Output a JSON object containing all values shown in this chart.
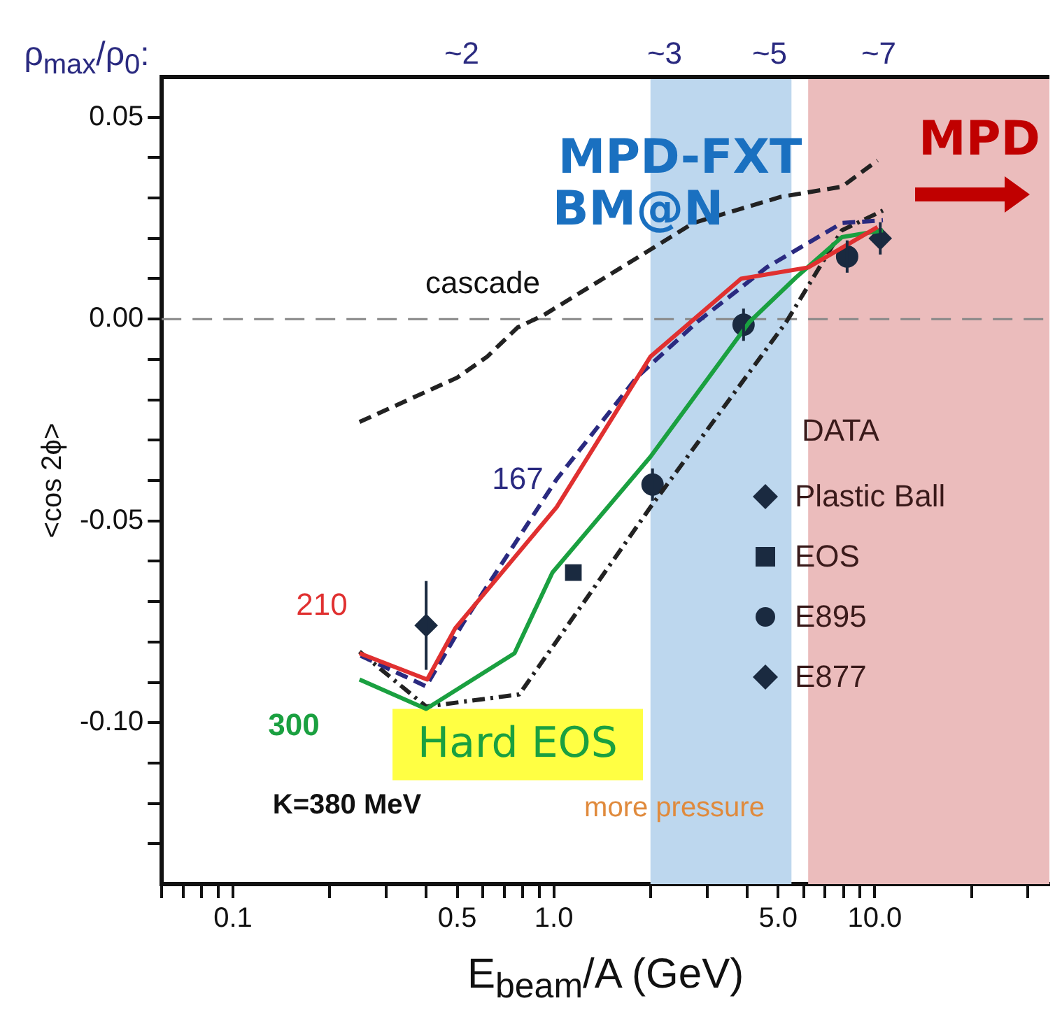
{
  "chart_data": {
    "type": "line",
    "xlabel": "E$_{beam}$/A (GeV)",
    "ylabel": "<cos 2ϕ>",
    "log": "x",
    "xlim": [
      0.06,
      35
    ],
    "ylim": [
      -0.14,
      0.06
    ],
    "xticks": [
      {
        "value": 0.06,
        "label": null
      },
      {
        "value": 0.07,
        "label": null
      },
      {
        "value": 0.08,
        "label": null
      },
      {
        "value": 0.09,
        "label": null
      },
      0.1,
      {
        "value": 0.2,
        "label": null
      },
      {
        "value": 0.3,
        "label": null
      },
      {
        "value": 0.4,
        "label": null
      },
      0.5,
      {
        "value": 0.6,
        "label": null
      },
      {
        "value": 0.7,
        "label": null
      },
      {
        "value": 0.8,
        "label": null
      },
      {
        "value": 0.9,
        "label": null
      },
      {
        "value": 1,
        "label": "1.0"
      },
      {
        "value": 2,
        "label": null
      },
      {
        "value": 3,
        "label": null
      },
      {
        "value": 4,
        "label": null
      },
      {
        "value": 5,
        "label": "5.0"
      },
      {
        "value": 6,
        "label": null
      },
      {
        "value": 7,
        "label": null
      },
      {
        "value": 8,
        "label": null
      },
      {
        "value": 9,
        "label": null
      },
      {
        "value": 10,
        "label": "10.0"
      },
      {
        "value": 20,
        "label": null
      },
      {
        "value": 30,
        "label": null
      }
    ],
    "yticks": [
      {
        "value": -0.13,
        "label": null
      },
      {
        "value": -0.12,
        "label": null
      },
      {
        "value": -0.11,
        "label": null
      },
      {
        "value": -0.1,
        "label": "-0.10"
      },
      {
        "value": -0.09,
        "label": null
      },
      {
        "value": -0.08,
        "label": null
      },
      {
        "value": -0.07,
        "label": null
      },
      {
        "value": -0.06,
        "label": null
      },
      -0.05,
      {
        "value": -0.04,
        "label": null
      },
      {
        "value": -0.03,
        "label": null
      },
      {
        "value": -0.02,
        "label": null
      },
      {
        "value": -0.01,
        "label": null
      },
      {
        "value": 0,
        "label": "0.00"
      },
      {
        "value": 0.01,
        "label": null
      },
      {
        "value": 0.02,
        "label": null
      },
      {
        "value": 0.03,
        "label": null
      },
      {
        "value": 0.04,
        "label": null
      },
      0.05
    ],
    "grid": false,
    "legend": "right",
    "legend_title": "DATA",
    "bands": [
      {
        "axis": "x",
        "from": 2.0,
        "to": 5.5,
        "color": "#bdd7ee"
      },
      {
        "axis": "x",
        "from": 6.2,
        "to": 35,
        "color": "#ebbcbc"
      }
    ],
    "ref_lines": [
      {
        "axis": "y",
        "value": 0,
        "color": "#888888",
        "line_style": "dashed"
      }
    ],
    "series": [
      {
        "color": "#222222",
        "line_style": "dashed",
        "x": [
          0.248,
          0.4,
          0.5,
          0.62,
          0.77,
          0.93,
          1.76,
          2.72,
          5.1,
          7.9,
          10.2
        ],
        "values": [
          -0.0255,
          -0.018,
          -0.0145,
          -0.0093,
          -0.0021,
          0.001,
          0.0145,
          0.0238,
          0.0303,
          0.0328,
          0.0393
        ]
      },
      {
        "color": "#e03030",
        "line_style": "solid",
        "x": [
          0.248,
          0.403,
          0.493,
          1.02,
          2.0,
          3.83,
          6.2,
          10.2
        ],
        "values": [
          -0.0828,
          -0.0893,
          -0.0766,
          -0.0466,
          -0.0093,
          0.01,
          0.0128,
          0.0228
        ]
      },
      {
        "color": "#2a2a80",
        "line_style": "dashed",
        "x": [
          0.25,
          0.4,
          0.52,
          1.02,
          1.81,
          2.8,
          4.6,
          7.9,
          10.6
        ],
        "values": [
          -0.0834,
          -0.091,
          -0.0755,
          -0.0397,
          -0.0145,
          -0.0007,
          0.0128,
          0.0238,
          0.0245
        ]
      },
      {
        "color": "#1aa040",
        "line_style": "solid",
        "x": [
          0.248,
          0.4,
          0.754,
          0.99,
          2.0,
          4.07,
          5.68,
          7.9,
          10.6
        ],
        "values": [
          -0.0893,
          -0.0966,
          -0.0828,
          -0.0628,
          -0.0341,
          -0.0007,
          0.0103,
          0.0203,
          0.022
        ]
      },
      {
        "color": "#222222",
        "line_style": "dotted",
        "x": [
          0.248,
          0.4,
          0.78,
          2.0,
          5.3,
          7.9,
          10.6
        ],
        "values": [
          -0.0824,
          -0.096,
          -0.093,
          -0.0466,
          -0.0007,
          0.022,
          0.0269
        ]
      },
      {
        "type": "scatter",
        "name": "Plastic Ball",
        "color": "#1a2a40",
        "marker": "diamond",
        "x": [
          0.4
        ],
        "values": [
          -0.0759
        ],
        "errors": [
          0.011
        ]
      },
      {
        "type": "scatter",
        "name": "EOS",
        "color": "#1a2a40",
        "marker": "square",
        "x": [
          1.15
        ],
        "values": [
          -0.0628
        ]
      },
      {
        "type": "scatter",
        "name": "E895",
        "color": "#1a2a40",
        "marker": "circle",
        "x": [
          2.03,
          3.9,
          8.2
        ],
        "values": [
          -0.041,
          -0.0014,
          0.0155
        ],
        "errors": [
          0.004,
          0.004,
          0.004
        ]
      },
      {
        "type": "scatter",
        "name": "E877",
        "color": "#1a2a40",
        "marker": "diamond",
        "x": [
          10.4
        ],
        "values": [
          0.02
        ],
        "errors": [
          0.004
        ]
      }
    ],
    "annotations": [
      "ρ$_{max}$/ρ$_{0}$:",
      "~2",
      "~3",
      "~5",
      "~7",
      "MPD-FXT",
      "BM@N",
      "MPD",
      "cascade",
      "167",
      "210",
      "300",
      "Hard EOS",
      "K=380 MeV",
      "more pressure"
    ]
  }
}
